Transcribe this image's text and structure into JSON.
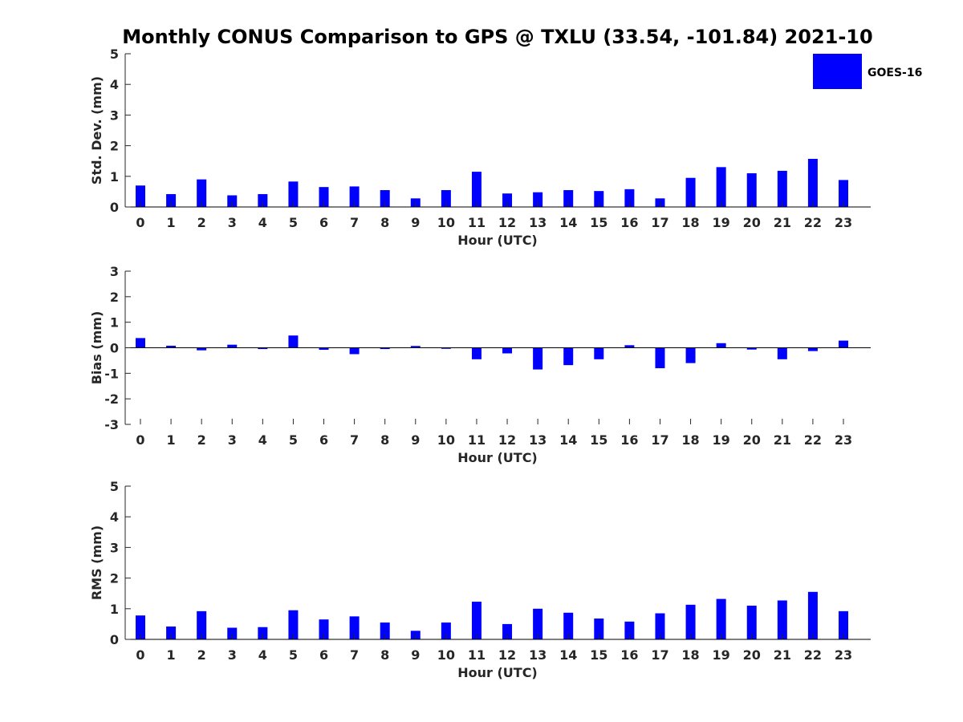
{
  "chart_data": {
    "title": "Monthly CONUS Comparison to GPS @ TXLU (33.54, -101.84) 2021-10",
    "legend": {
      "label": "GOES-16",
      "color": "#0000ff",
      "placement": "top-right"
    },
    "categories": [
      "0",
      "1",
      "2",
      "3",
      "4",
      "5",
      "6",
      "7",
      "8",
      "9",
      "10",
      "11",
      "12",
      "13",
      "14",
      "15",
      "16",
      "17",
      "18",
      "19",
      "20",
      "21",
      "22",
      "23"
    ],
    "panels": [
      {
        "type": "bar",
        "name": "std",
        "ylabel": "Std. Dev. (mm)",
        "xlabel": "Hour (UTC)",
        "ylim": [
          0,
          5
        ],
        "yticks": [
          0,
          1,
          2,
          3,
          4,
          5
        ],
        "values": [
          0.7,
          0.42,
          0.9,
          0.38,
          0.42,
          0.83,
          0.65,
          0.67,
          0.55,
          0.28,
          0.55,
          1.15,
          0.44,
          0.48,
          0.55,
          0.52,
          0.58,
          0.28,
          0.95,
          1.3,
          1.1,
          1.18,
          1.57,
          0.88
        ]
      },
      {
        "type": "bar",
        "name": "bias",
        "ylabel": "Bias (mm)",
        "xlabel": "Hour (UTC)",
        "ylim": [
          -3,
          3
        ],
        "yticks": [
          -3,
          -2,
          -1,
          0,
          1,
          2,
          3
        ],
        "values": [
          0.38,
          0.08,
          -0.1,
          0.12,
          -0.05,
          0.48,
          -0.08,
          -0.25,
          -0.05,
          0.07,
          -0.04,
          -0.45,
          -0.22,
          -0.85,
          -0.68,
          -0.45,
          0.1,
          -0.8,
          -0.6,
          0.18,
          -0.07,
          -0.45,
          -0.13,
          0.28
        ]
      },
      {
        "type": "bar",
        "name": "rms",
        "ylabel": "RMS (mm)",
        "xlabel": "Hour (UTC)",
        "ylim": [
          0,
          5
        ],
        "yticks": [
          0,
          1,
          2,
          3,
          4,
          5
        ],
        "values": [
          0.78,
          0.42,
          0.92,
          0.38,
          0.4,
          0.95,
          0.65,
          0.75,
          0.55,
          0.28,
          0.55,
          1.23,
          0.5,
          1.0,
          0.87,
          0.68,
          0.58,
          0.85,
          1.13,
          1.32,
          1.1,
          1.27,
          1.55,
          0.92
        ]
      }
    ]
  }
}
